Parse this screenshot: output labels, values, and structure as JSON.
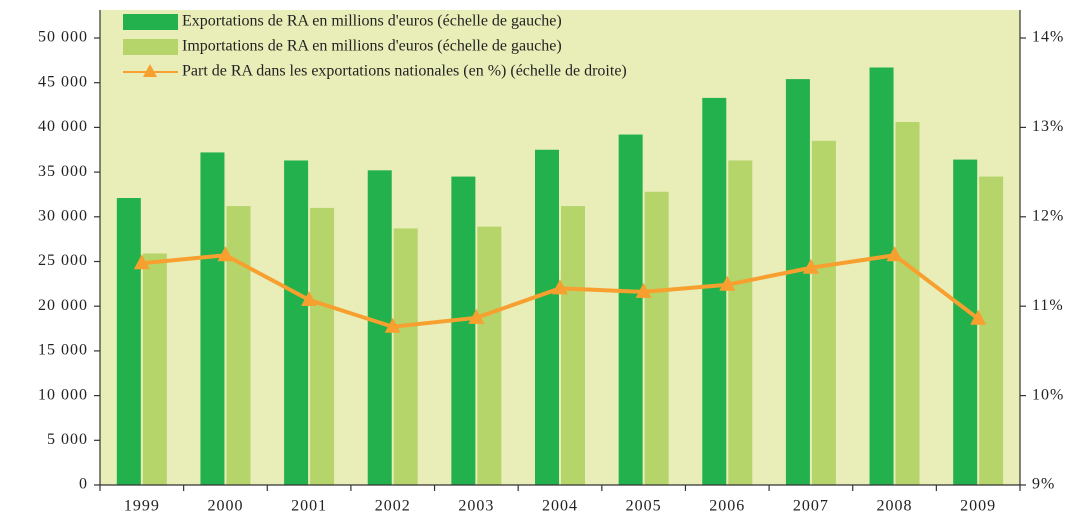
{
  "chart_data": {
    "type": "bar",
    "categories": [
      "1999",
      "2000",
      "2001",
      "2002",
      "2003",
      "2004",
      "2005",
      "2006",
      "2007",
      "2008",
      "2009"
    ],
    "series": [
      {
        "name": "Exportations de RA en millions d'euros (échelle de gauche)",
        "color": "#22b14c",
        "values": [
          32100,
          37200,
          36300,
          35200,
          34500,
          37500,
          39200,
          43300,
          45400,
          46700,
          36400
        ]
      },
      {
        "name": "Importations de RA en millions d'euros (échelle de gauche)",
        "color": "#b5d56a",
        "values": [
          25900,
          31200,
          31000,
          28700,
          28900,
          31200,
          32800,
          36300,
          38500,
          40600,
          34500
        ]
      },
      {
        "name": "Part de RA dans les exportations nationales (en %) (échelle de droite)",
        "color": "#f7a030",
        "type": "line",
        "axis": "y2",
        "values": [
          11.48,
          11.57,
          11.07,
          10.77,
          10.87,
          11.2,
          11.16,
          11.24,
          11.43,
          11.57,
          10.86
        ]
      }
    ],
    "ylim": [
      0,
      50000
    ],
    "yticks": [
      0,
      {
        "value": 5000,
        "label": "5 000"
      },
      {
        "value": 10000,
        "label": "10 000"
      },
      {
        "value": 15000,
        "label": "15 000"
      },
      {
        "value": 20000,
        "label": "20 000"
      },
      {
        "value": 25000,
        "label": "25 000"
      },
      {
        "value": 30000,
        "label": "30 000"
      },
      {
        "value": 35000,
        "label": "35 000"
      },
      {
        "value": 40000,
        "label": "40 000"
      },
      {
        "value": 45000,
        "label": "45 000"
      },
      {
        "value": 50000,
        "label": "50 000"
      }
    ],
    "y2lim": [
      9,
      14
    ],
    "y2ticks": [
      {
        "value": 9,
        "label": "9%"
      },
      {
        "value": 10,
        "label": "10%"
      },
      {
        "value": 11,
        "label": "11%"
      },
      {
        "value": 12,
        "label": "12%"
      },
      {
        "value": 13,
        "label": "13%"
      },
      {
        "value": 14,
        "label": "14%"
      }
    ],
    "background": "#e9eeb8"
  }
}
